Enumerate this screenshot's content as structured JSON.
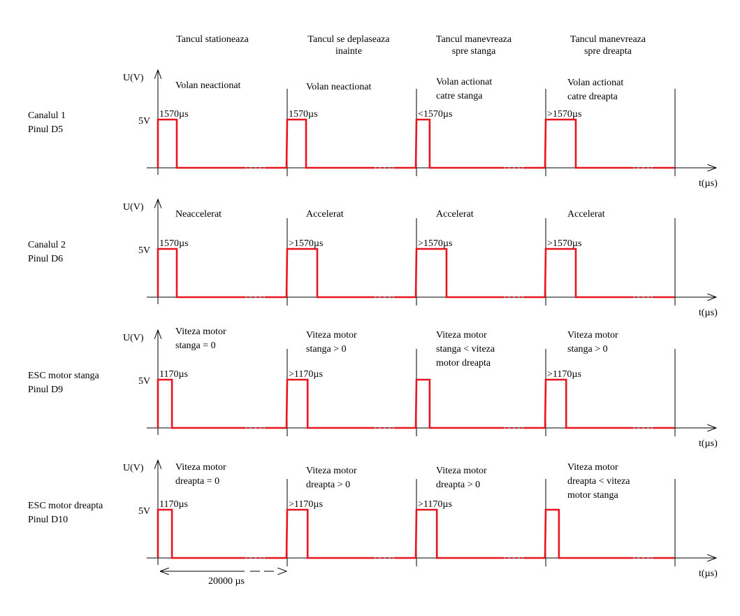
{
  "scenarios": [
    {
      "lines": [
        "Tancul stationeaza"
      ]
    },
    {
      "lines": [
        "Tancul se deplaseaza",
        "inainte"
      ]
    },
    {
      "lines": [
        "Tancul manevreaza",
        "spre stanga"
      ]
    },
    {
      "lines": [
        "Tancul manevreaza",
        "spre dreapta"
      ]
    }
  ],
  "axis_labels": {
    "y": "U(V)",
    "x": "t(µs)",
    "level": "5V"
  },
  "period_label": "20000 µs",
  "signal_color": "#e8141e",
  "channels": [
    {
      "name": [
        "Canalul 1",
        "Pinul D5"
      ],
      "states": [
        [
          "Volan neactionat"
        ],
        [
          "Volan neactionat"
        ],
        [
          "Volan actionat",
          "catre stanga"
        ],
        [
          "Volan actionat",
          "catre dreapta"
        ]
      ],
      "pulse_labels": [
        "1570µs",
        "1570µs",
        "<1570µs",
        ">1570µs"
      ],
      "pulse_us": [
        1570,
        1570,
        1100,
        2500
      ]
    },
    {
      "name": [
        "Canalul 2",
        "Pinul D6"
      ],
      "states": [
        [
          "Neaccelerat"
        ],
        [
          "Accelerat"
        ],
        [
          "Accelerat"
        ],
        [
          "Accelerat"
        ]
      ],
      "pulse_labels": [
        "1570µs",
        ">1570µs",
        ">1570µs",
        ">1570µs"
      ],
      "pulse_us": [
        1570,
        2500,
        2500,
        2500
      ]
    },
    {
      "name": [
        "ESC motor stanga",
        "Pinul D9"
      ],
      "states": [
        [
          "Viteza motor",
          "stanga = 0"
        ],
        [
          "Viteza motor",
          "stanga > 0"
        ],
        [
          "Viteza motor",
          "stanga < viteza",
          "motor dreapta"
        ],
        [
          "Viteza motor",
          "stanga > 0"
        ]
      ],
      "pulse_labels": [
        "1170µs",
        ">1170µs",
        "",
        ">1170µs"
      ],
      "pulse_us": [
        1170,
        1700,
        1100,
        1700
      ]
    },
    {
      "name": [
        "ESC motor dreapta",
        "Pinul D10"
      ],
      "states": [
        [
          "Viteza motor",
          "dreapta = 0"
        ],
        [
          "Viteza motor",
          "dreapta > 0"
        ],
        [
          "Viteza motor",
          "dreapta > 0"
        ],
        [
          "Viteza motor",
          "dreapta < viteza",
          "motor stanga"
        ]
      ],
      "pulse_labels": [
        "1170µs",
        ">1170µs",
        ">1170µs",
        ""
      ],
      "pulse_us": [
        1170,
        1700,
        1700,
        1100
      ]
    }
  ]
}
